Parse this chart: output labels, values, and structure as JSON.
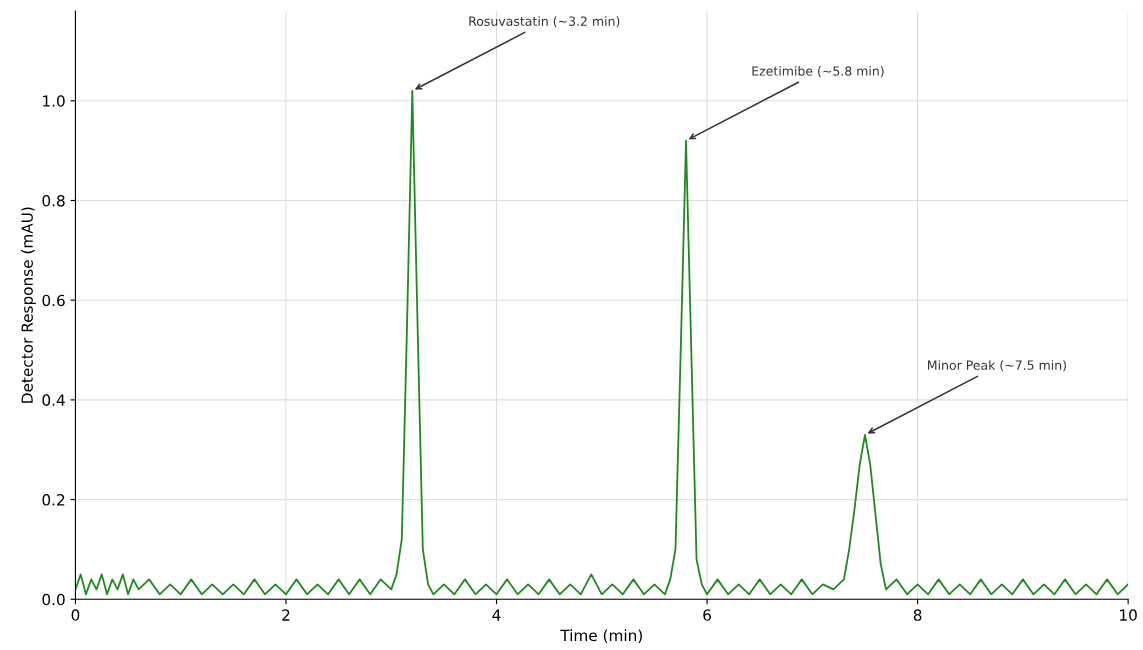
{
  "chart_data": {
    "type": "line",
    "xlabel": "Time (min)",
    "ylabel": "Detector Response (mAU)",
    "xlim": [
      0,
      10
    ],
    "ylim": [
      0,
      1.18
    ],
    "xticks": [
      0,
      2,
      4,
      6,
      8,
      10
    ],
    "yticks": [
      {
        "value": 0,
        "label": "0.0"
      },
      {
        "value": 0.2,
        "label": "0.2"
      },
      {
        "value": 0.4,
        "label": "0.4"
      },
      {
        "value": 0.6,
        "label": "0.6"
      },
      {
        "value": 0.8,
        "label": "0.8"
      },
      {
        "value": 1.0,
        "label": "1.0"
      }
    ],
    "grid": true,
    "series": [
      {
        "color": "#1f8a1f",
        "x": [
          0,
          0.05,
          0.1,
          0.15,
          0.2,
          0.25,
          0.3,
          0.35,
          0.4,
          0.45,
          0.5,
          0.55,
          0.6,
          0.7,
          0.8,
          0.9,
          1.0,
          1.1,
          1.2,
          1.3,
          1.4,
          1.5,
          1.6,
          1.7,
          1.8,
          1.9,
          2.0,
          2.1,
          2.2,
          2.3,
          2.4,
          2.5,
          2.6,
          2.7,
          2.8,
          2.9,
          3.0,
          3.05,
          3.1,
          3.15,
          3.2,
          3.25,
          3.3,
          3.35,
          3.4,
          3.5,
          3.6,
          3.7,
          3.8,
          3.9,
          4.0,
          4.1,
          4.2,
          4.3,
          4.4,
          4.5,
          4.6,
          4.7,
          4.8,
          4.9,
          5.0,
          5.1,
          5.2,
          5.3,
          5.4,
          5.5,
          5.6,
          5.65,
          5.7,
          5.75,
          5.8,
          5.85,
          5.9,
          5.95,
          6.0,
          6.1,
          6.2,
          6.3,
          6.4,
          6.5,
          6.6,
          6.7,
          6.8,
          6.9,
          7.0,
          7.1,
          7.2,
          7.3,
          7.35,
          7.4,
          7.45,
          7.5,
          7.55,
          7.6,
          7.65,
          7.7,
          7.8,
          7.9,
          8.0,
          8.1,
          8.2,
          8.3,
          8.4,
          8.5,
          8.6,
          8.7,
          8.8,
          8.9,
          9.0,
          9.1,
          9.2,
          9.3,
          9.4,
          9.5,
          9.6,
          9.7,
          9.8,
          9.9,
          10.0
        ],
        "values": [
          0.02,
          0.05,
          0.01,
          0.04,
          0.02,
          0.05,
          0.01,
          0.04,
          0.02,
          0.05,
          0.01,
          0.04,
          0.02,
          0.04,
          0.01,
          0.03,
          0.01,
          0.04,
          0.01,
          0.03,
          0.01,
          0.03,
          0.01,
          0.04,
          0.01,
          0.03,
          0.01,
          0.04,
          0.01,
          0.03,
          0.01,
          0.04,
          0.01,
          0.04,
          0.01,
          0.04,
          0.02,
          0.05,
          0.12,
          0.55,
          1.02,
          0.55,
          0.1,
          0.03,
          0.01,
          0.03,
          0.01,
          0.04,
          0.01,
          0.03,
          0.01,
          0.04,
          0.01,
          0.03,
          0.01,
          0.04,
          0.01,
          0.03,
          0.01,
          0.05,
          0.01,
          0.03,
          0.01,
          0.04,
          0.01,
          0.03,
          0.01,
          0.04,
          0.1,
          0.5,
          0.92,
          0.5,
          0.08,
          0.03,
          0.01,
          0.04,
          0.01,
          0.03,
          0.01,
          0.04,
          0.01,
          0.03,
          0.01,
          0.04,
          0.01,
          0.03,
          0.02,
          0.04,
          0.1,
          0.18,
          0.27,
          0.33,
          0.27,
          0.17,
          0.07,
          0.02,
          0.04,
          0.01,
          0.03,
          0.01,
          0.04,
          0.01,
          0.03,
          0.01,
          0.04,
          0.01,
          0.03,
          0.01,
          0.04,
          0.01,
          0.03,
          0.01,
          0.04,
          0.01,
          0.03,
          0.01,
          0.04,
          0.01,
          0.03
        ]
      }
    ],
    "annotations": [
      {
        "text": "Rosuvastatin (~3.2 min)",
        "x": 3.2,
        "y": 1.02
      },
      {
        "text": "Ezetimibe (~5.8 min)",
        "x": 5.8,
        "y": 0.92
      },
      {
        "text": "Minor Peak (~7.5 min)",
        "x": 7.5,
        "y": 0.33
      }
    ]
  }
}
